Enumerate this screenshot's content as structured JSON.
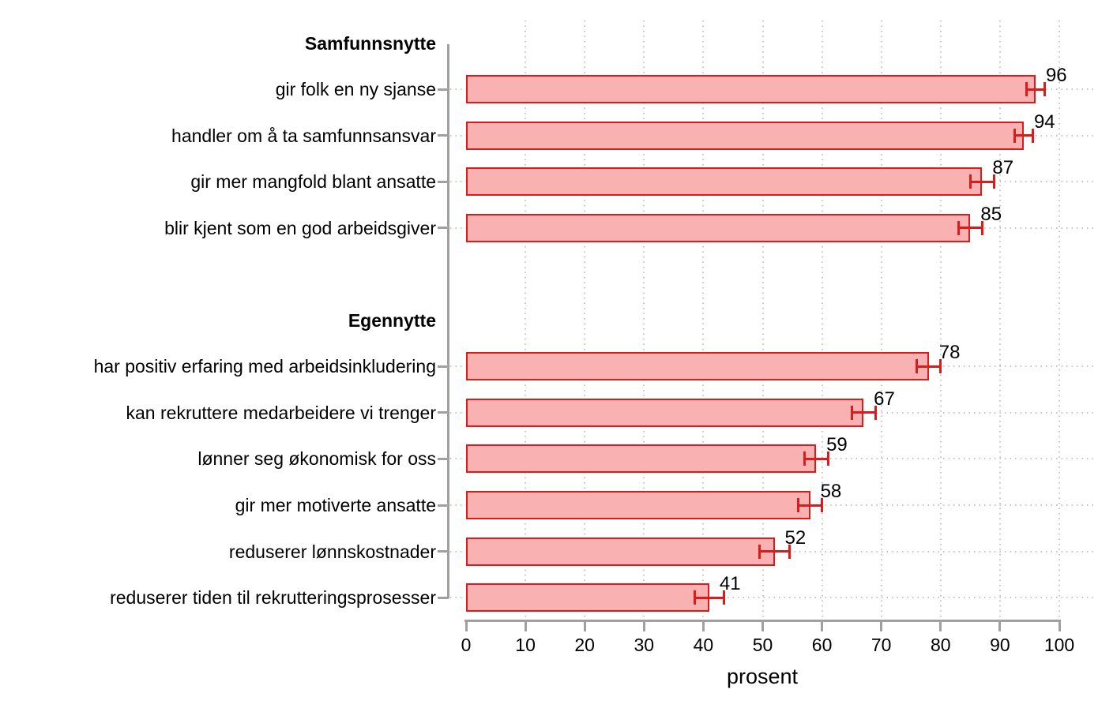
{
  "chart_data": {
    "type": "bar",
    "orientation": "horizontal",
    "title": "",
    "xlabel": "prosent",
    "xlim": [
      0,
      100
    ],
    "xticks": [
      0,
      10,
      20,
      30,
      40,
      50,
      60,
      70,
      80,
      90,
      100
    ],
    "grid": "dotted vertical line at each x tick (10-100); dotted horizontal line across each bar row",
    "legend": "none",
    "error_bars": "horizontal confidence-interval whiskers with end caps centered on each bar end",
    "groups": [
      {
        "header": "Samfunnsnytte",
        "items": [
          {
            "label": "gir folk en ny sjanse",
            "value": 96,
            "ci_low": 94.5,
            "ci_high": 97.5
          },
          {
            "label": "handler om å ta samfunnsansvar",
            "value": 94,
            "ci_low": 92.5,
            "ci_high": 95.5
          },
          {
            "label": "gir mer mangfold blant ansatte",
            "value": 87,
            "ci_low": 85,
            "ci_high": 89
          },
          {
            "label": "blir kjent som en god arbeidsgiver",
            "value": 85,
            "ci_low": 83,
            "ci_high": 87
          }
        ]
      },
      {
        "header": "Egennytte",
        "items": [
          {
            "label": "har positiv erfaring med arbeidsinkludering",
            "value": 78,
            "ci_low": 76,
            "ci_high": 80
          },
          {
            "label": "kan rekruttere medarbeidere vi trenger",
            "value": 67,
            "ci_low": 65,
            "ci_high": 69
          },
          {
            "label": "lønner seg økonomisk for oss",
            "value": 59,
            "ci_low": 57,
            "ci_high": 61
          },
          {
            "label": "gir mer motiverte ansatte",
            "value": 58,
            "ci_low": 56,
            "ci_high": 60
          },
          {
            "label": "reduserer lønnskostnader",
            "value": 52,
            "ci_low": 49.5,
            "ci_high": 54.5
          },
          {
            "label": "reduserer tiden til rekrutteringsprosesser",
            "value": 41,
            "ci_low": 38.5,
            "ci_high": 43.5
          }
        ]
      }
    ],
    "colors": {
      "bar_fill": "#fab1b1",
      "bar_border": "#dc1b1b",
      "error_bar": "#dc1b1b",
      "axis": "#a0a0a0",
      "grid": "#c4c4c4",
      "text": "#000000"
    }
  }
}
